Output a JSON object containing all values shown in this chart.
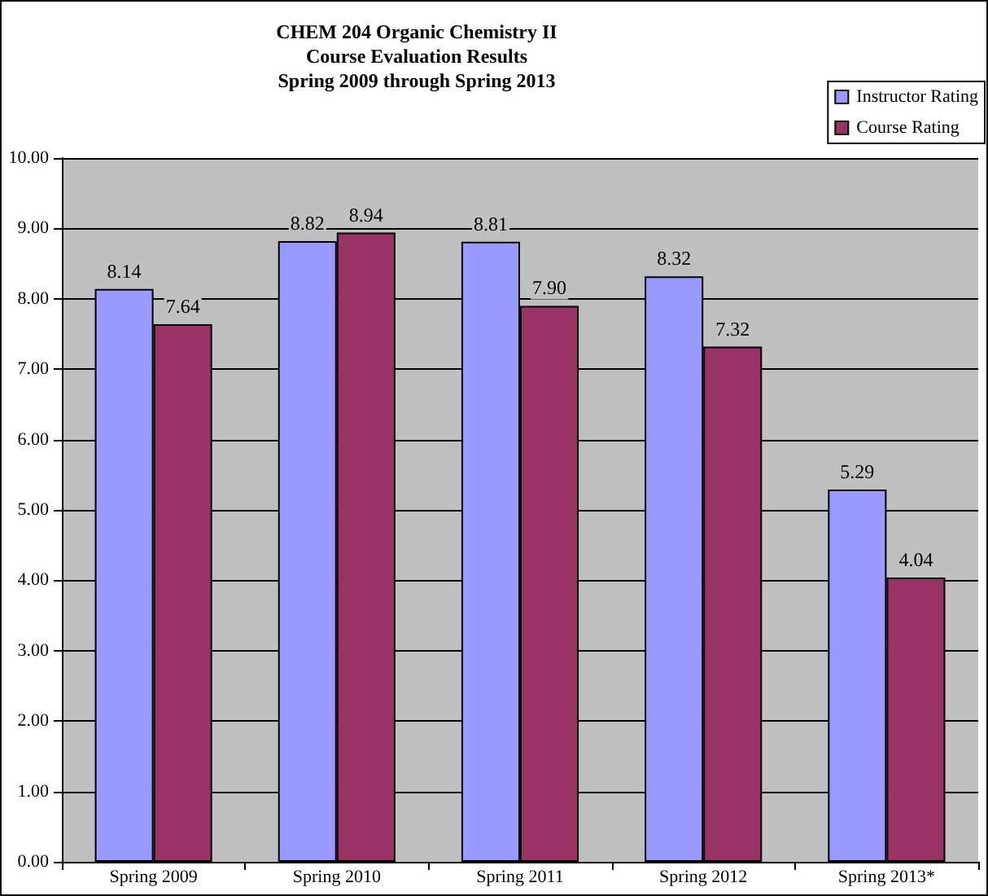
{
  "chart_data": {
    "type": "bar",
    "title": "CHEM 204 Organic Chemistry II\nCourse Evaluation Results\nSpring 2009 through Spring 2013",
    "categories": [
      "Spring 2009",
      "Spring 2010",
      "Spring 2011",
      "Spring 2012",
      "Spring 2013*"
    ],
    "series": [
      {
        "name": "Instructor Rating",
        "color": "#9999ff",
        "values": [
          8.14,
          8.82,
          8.81,
          8.32,
          5.29
        ],
        "value_labels": [
          "8.14",
          "8.82",
          "8.81",
          "8.32",
          "5.29"
        ]
      },
      {
        "name": "Course Rating",
        "color": "#993366",
        "values": [
          7.64,
          8.94,
          7.9,
          7.32,
          4.04
        ],
        "value_labels": [
          "7.64",
          "8.94",
          "7.90",
          "7.32",
          "4.04"
        ]
      }
    ],
    "ylim": [
      0,
      10
    ],
    "yticks": [
      {
        "value": 0,
        "label": "0.00"
      },
      {
        "value": 1,
        "label": "1.00"
      },
      {
        "value": 2,
        "label": "2.00"
      },
      {
        "value": 3,
        "label": "3.00"
      },
      {
        "value": 4,
        "label": "4.00"
      },
      {
        "value": 5,
        "label": "5.00"
      },
      {
        "value": 6,
        "label": "6.00"
      },
      {
        "value": 7,
        "label": "7.00"
      },
      {
        "value": 8,
        "label": "8.00"
      },
      {
        "value": 9,
        "label": "9.00"
      },
      {
        "value": 10,
        "label": "10.00"
      }
    ],
    "grid": "y",
    "legend": "top right"
  }
}
